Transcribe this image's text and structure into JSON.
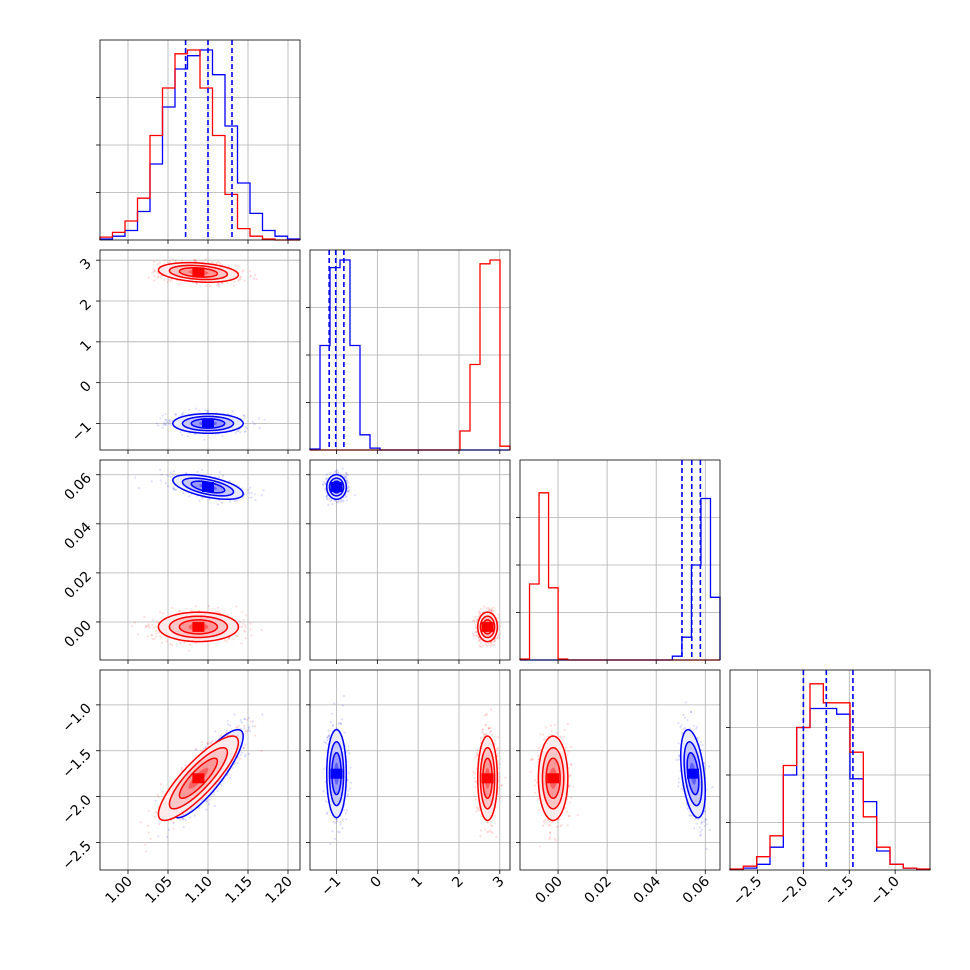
{
  "chart_data": {
    "type": "corner",
    "grid": true,
    "colors": {
      "blue": "#0000ff",
      "red": "#ff0000"
    },
    "parameters": [
      {
        "range": [
          0.965,
          1.215
        ],
        "ticks": [
          1.0,
          1.05,
          1.1,
          1.15,
          1.2
        ],
        "tick_labels": [
          "1.00",
          "1.05",
          "1.10",
          "1.15",
          "1.20"
        ]
      },
      {
        "range": [
          -1.65,
          3.25
        ],
        "ticks": [
          -1,
          0,
          1,
          2,
          3
        ],
        "tick_labels": [
          "−1",
          "0",
          "1",
          "2",
          "3"
        ]
      },
      {
        "range": [
          -0.0155,
          0.066
        ],
        "ticks": [
          0.0,
          0.02,
          0.04,
          0.06
        ],
        "tick_labels": [
          "0.00",
          "0.02",
          "0.04",
          "0.06"
        ]
      },
      {
        "range": [
          -2.8,
          -0.62
        ],
        "ticks": [
          -2.5,
          -2.0,
          -1.5,
          -1.0
        ],
        "tick_labels": [
          "−2.5",
          "−2.0",
          "−1.5",
          "−1.0"
        ]
      }
    ],
    "quantiles_blue": [
      [
        1.072,
        1.1,
        1.13
      ],
      [
        -1.18,
        -1.02,
        -0.82
      ],
      [
        0.0505,
        0.0545,
        0.058
      ],
      [
        -2.0,
        -1.75,
        -1.46
      ]
    ],
    "series": [
      {
        "name": "",
        "color": "#0000ff",
        "means": [
          1.1,
          -1.0,
          0.055,
          -1.75
        ],
        "sds": [
          0.022,
          0.12,
          0.0025,
          0.24
        ],
        "correlations": [
          [
            0,
            2,
            -0.55
          ],
          [
            0,
            3,
            0.85
          ],
          [
            2,
            3,
            -0.4
          ]
        ],
        "histograms": [
          [
            0.005,
            0.02,
            0.05,
            0.15,
            0.4,
            0.7,
            0.9,
            0.97,
            1.0,
            0.87,
            0.6,
            0.3,
            0.14,
            0.05,
            0.02,
            0.005
          ],
          [
            0.005,
            0.55,
            0.96,
            1.0,
            0.55,
            0.08,
            0.01,
            0,
            0,
            0,
            0,
            0,
            0,
            0,
            0,
            0,
            0,
            0,
            0,
            0
          ],
          [
            0,
            0,
            0,
            0,
            0,
            0,
            0,
            0,
            0,
            0,
            0,
            0,
            0,
            0,
            0,
            0,
            0.02,
            0.12,
            0.5,
            0.85,
            0.33
          ],
          [
            0.003,
            0.01,
            0.03,
            0.12,
            0.5,
            0.75,
            0.85,
            0.85,
            0.82,
            0.48,
            0.36,
            0.1,
            0.03,
            0.01,
            0.003
          ]
        ]
      },
      {
        "name": "",
        "color": "#ff0000",
        "means": [
          1.088,
          2.7,
          -0.002,
          -1.8
        ],
        "sds": [
          0.025,
          0.12,
          0.003,
          0.23
        ],
        "correlations": [
          [
            0,
            3,
            0.85
          ],
          [
            0,
            1,
            -0.25
          ]
        ],
        "histograms": [
          [
            0.015,
            0.04,
            0.1,
            0.22,
            0.55,
            0.8,
            0.98,
            1.0,
            0.8,
            0.55,
            0.24,
            0.06,
            0.02,
            0.005,
            0,
            0
          ],
          [
            0,
            0,
            0,
            0,
            0,
            0,
            0,
            0,
            0,
            0,
            0,
            0,
            0,
            0,
            0,
            0.1,
            0.45,
            0.98,
            1.0,
            0.02
          ],
          [
            0.005,
            0.4,
            0.88,
            0.38,
            0.005,
            0,
            0,
            0,
            0,
            0,
            0,
            0,
            0,
            0,
            0,
            0,
            0,
            0,
            0,
            0,
            0
          ],
          [
            0.005,
            0.02,
            0.07,
            0.18,
            0.55,
            0.75,
            0.98,
            0.88,
            0.88,
            0.62,
            0.28,
            0.12,
            0.03,
            0.01,
            0.005
          ]
        ]
      }
    ]
  }
}
